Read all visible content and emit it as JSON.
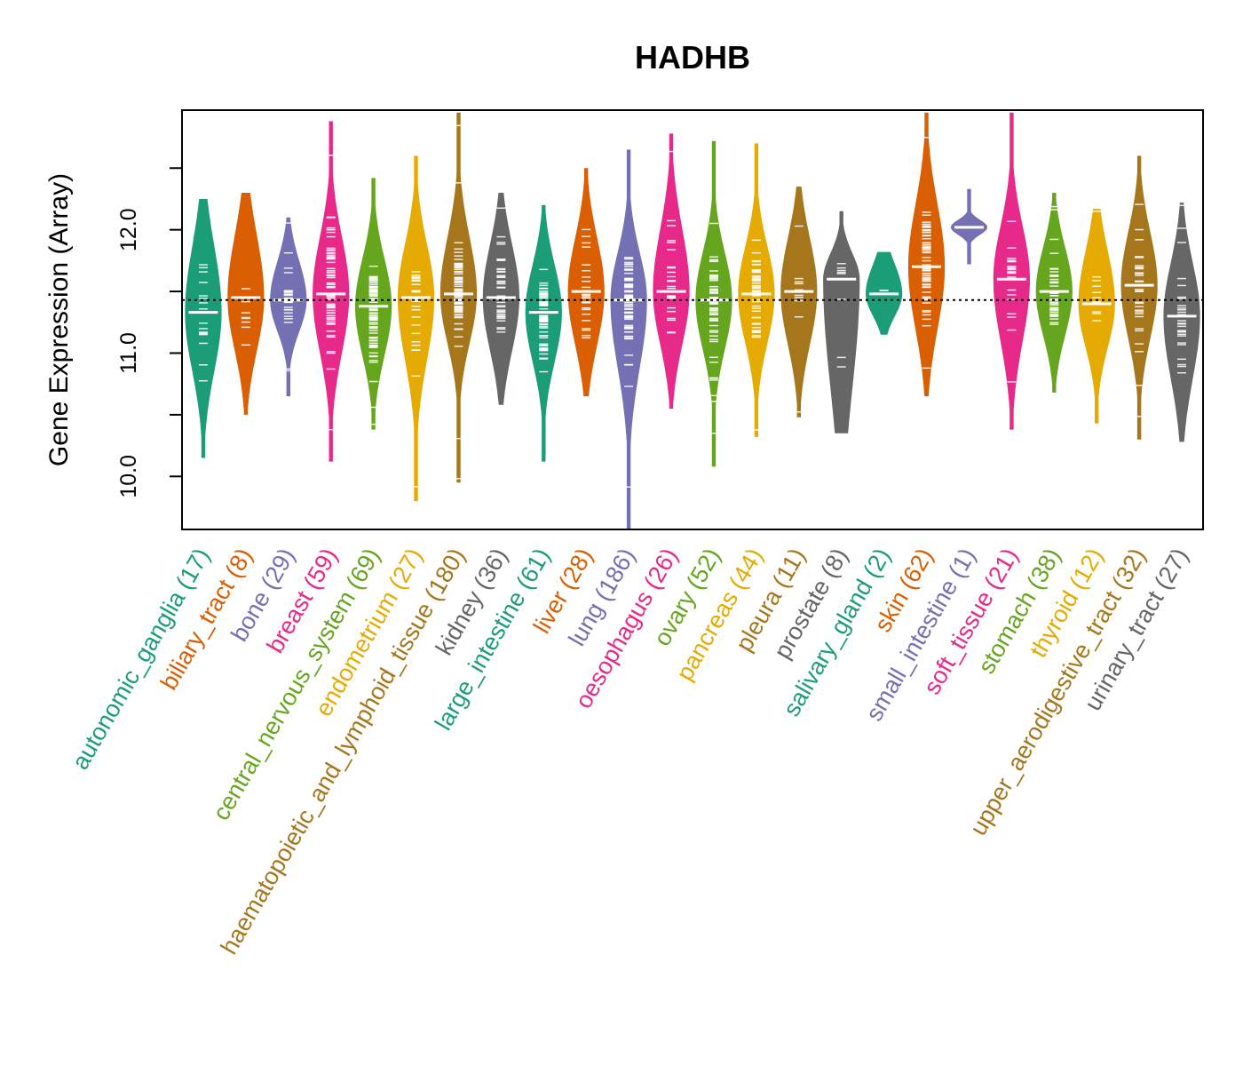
{
  "chart_data": {
    "type": "beanplot",
    "title": "HADHB",
    "xlabel": "",
    "ylabel": "Gene Expression (Array)",
    "ylim": [
      9.57,
      12.97
    ],
    "yticks": [
      10.0,
      10.5,
      11.0,
      11.5,
      12.0,
      12.5
    ],
    "ytick_labels": [
      "10.0",
      "",
      "11.0",
      "",
      "12.0",
      ""
    ],
    "overall_median": 11.43,
    "reference_line": "dotted",
    "categories": [
      {
        "name": "autonomic_ganglia",
        "n": 17,
        "label": "autonomic_ganglia (17)",
        "color": "#1B9E77",
        "min": 10.15,
        "max": 12.25,
        "median": 11.33,
        "q1": 11.05,
        "q3": 11.65
      },
      {
        "name": "biliary_tract",
        "n": 8,
        "label": "biliary_tract (8)",
        "color": "#D95F02",
        "min": 10.5,
        "max": 12.3,
        "median": 11.45,
        "q1": 11.2,
        "q3": 11.75
      },
      {
        "name": "bone",
        "n": 29,
        "label": "bone (29)",
        "color": "#7570B3",
        "min": 10.65,
        "max": 12.1,
        "median": 11.43,
        "q1": 11.3,
        "q3": 11.6
      },
      {
        "name": "breast",
        "n": 59,
        "label": "breast (59)",
        "color": "#E7298A",
        "min": 10.12,
        "max": 12.88,
        "median": 11.48,
        "q1": 11.2,
        "q3": 11.75
      },
      {
        "name": "central_nervous_system",
        "n": 69,
        "label": "central_nervous_system (69)",
        "color": "#66A61E",
        "min": 10.38,
        "max": 12.42,
        "median": 11.38,
        "q1": 11.15,
        "q3": 11.6
      },
      {
        "name": "endometrium",
        "n": 27,
        "label": "endometrium (27)",
        "color": "#E6AB02",
        "min": 9.8,
        "max": 12.6,
        "median": 11.45,
        "q1": 11.15,
        "q3": 11.7
      },
      {
        "name": "haematopoietic_and_lymphoid_tissue",
        "n": 180,
        "label": "haematopoietic_and_lymphoid_tissue (180)",
        "color": "#A6761D",
        "min": 9.95,
        "max": 12.95,
        "median": 11.48,
        "q1": 11.25,
        "q3": 11.75
      },
      {
        "name": "kidney",
        "n": 36,
        "label": "kidney (36)",
        "color": "#666666",
        "min": 10.58,
        "max": 12.3,
        "median": 11.45,
        "q1": 11.2,
        "q3": 11.7
      },
      {
        "name": "large_intestine",
        "n": 61,
        "label": "large_intestine (61)",
        "color": "#1B9E77",
        "min": 10.12,
        "max": 12.2,
        "median": 11.33,
        "q1": 11.1,
        "q3": 11.55
      },
      {
        "name": "liver",
        "n": 28,
        "label": "liver (28)",
        "color": "#D95F02",
        "min": 10.65,
        "max": 12.5,
        "median": 11.5,
        "q1": 11.25,
        "q3": 11.75
      },
      {
        "name": "lung",
        "n": 186,
        "label": "lung (186)",
        "color": "#7570B3",
        "min": 9.57,
        "max": 12.65,
        "median": 11.43,
        "q1": 11.1,
        "q3": 11.65
      },
      {
        "name": "oesophagus",
        "n": 26,
        "label": "oesophagus (26)",
        "color": "#E7298A",
        "min": 10.55,
        "max": 12.78,
        "median": 11.5,
        "q1": 11.25,
        "q3": 11.8
      },
      {
        "name": "ovary",
        "n": 52,
        "label": "ovary (52)",
        "color": "#66A61E",
        "min": 10.08,
        "max": 12.72,
        "median": 11.43,
        "q1": 11.2,
        "q3": 11.65
      },
      {
        "name": "pancreas",
        "n": 44,
        "label": "pancreas (44)",
        "color": "#E6AB02",
        "min": 10.32,
        "max": 12.7,
        "median": 11.48,
        "q1": 11.25,
        "q3": 11.7
      },
      {
        "name": "pleura",
        "n": 11,
        "label": "pleura (11)",
        "color": "#A6761D",
        "min": 10.48,
        "max": 12.35,
        "median": 11.5,
        "q1": 11.25,
        "q3": 11.75
      },
      {
        "name": "prostate",
        "n": 8,
        "label": "prostate (8)",
        "color": "#666666",
        "min": 10.35,
        "max": 12.15,
        "median": 11.6,
        "q1": 11.05,
        "q3": 11.7
      },
      {
        "name": "salivary_gland",
        "n": 2,
        "label": "salivary_gland (2)",
        "color": "#1B9E77",
        "min": 11.15,
        "max": 11.82,
        "median": 11.48,
        "q1": 11.4,
        "q3": 11.6
      },
      {
        "name": "skin",
        "n": 62,
        "label": "skin (62)",
        "color": "#D95F02",
        "min": 10.65,
        "max": 12.95,
        "median": 11.7,
        "q1": 11.4,
        "q3": 12.0
      },
      {
        "name": "small_intestine",
        "n": 1,
        "label": "small_intestine (1)",
        "color": "#7570B3",
        "min": 11.72,
        "max": 12.33,
        "median": 12.02,
        "q1": 12.02,
        "q3": 12.02
      },
      {
        "name": "soft_tissue",
        "n": 21,
        "label": "soft_tissue (21)",
        "color": "#E7298A",
        "min": 10.38,
        "max": 12.95,
        "median": 11.6,
        "q1": 11.3,
        "q3": 11.85
      },
      {
        "name": "stomach",
        "n": 38,
        "label": "stomach (38)",
        "color": "#66A61E",
        "min": 10.68,
        "max": 12.3,
        "median": 11.5,
        "q1": 11.3,
        "q3": 11.7
      },
      {
        "name": "thyroid",
        "n": 12,
        "label": "thyroid (12)",
        "color": "#E6AB02",
        "min": 10.43,
        "max": 12.17,
        "median": 11.4,
        "q1": 11.2,
        "q3": 11.65
      },
      {
        "name": "upper_aerodigestive_tract",
        "n": 32,
        "label": "upper_aerodigestive_tract (32)",
        "color": "#A6761D",
        "min": 10.3,
        "max": 12.6,
        "median": 11.55,
        "q1": 11.3,
        "q3": 11.8
      },
      {
        "name": "urinary_tract",
        "n": 27,
        "label": "urinary_tract (27)",
        "color": "#666666",
        "min": 10.28,
        "max": 12.22,
        "median": 11.3,
        "q1": 11.0,
        "q3": 11.55
      }
    ]
  }
}
